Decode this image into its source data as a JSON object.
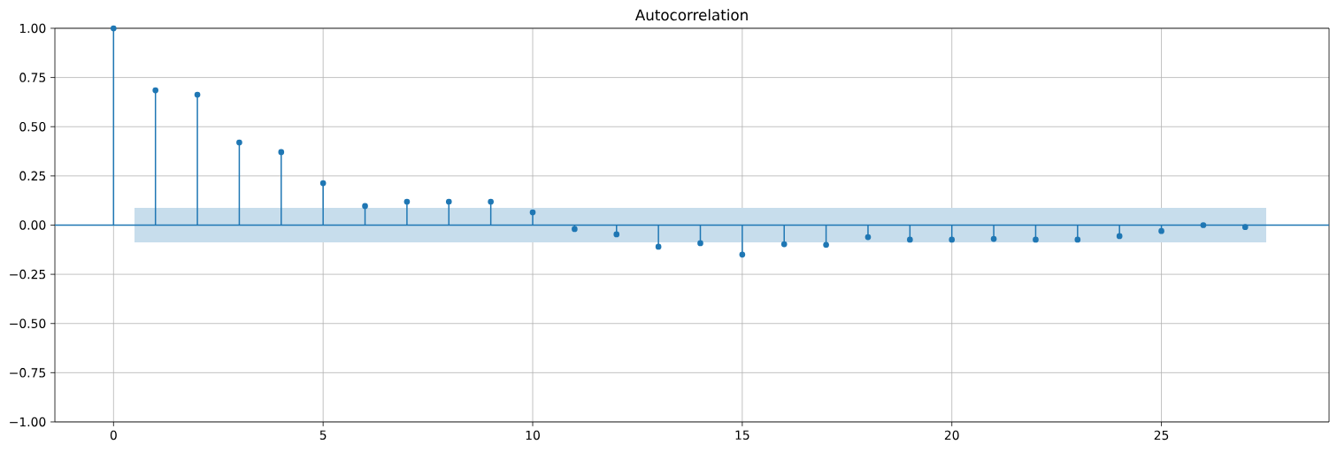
{
  "chart_data": {
    "type": "lollipop",
    "title": "Autocorrelation",
    "x": [
      0,
      1,
      2,
      3,
      4,
      5,
      6,
      7,
      8,
      9,
      10,
      11,
      12,
      13,
      14,
      15,
      16,
      17,
      18,
      19,
      20,
      21,
      22,
      23,
      24,
      25,
      26,
      27
    ],
    "series": [
      {
        "color": "#1f77b4",
        "values": [
          1.0,
          0.685,
          0.663,
          0.42,
          0.371,
          0.213,
          0.097,
          0.119,
          0.119,
          0.119,
          0.065,
          -0.02,
          -0.047,
          -0.11,
          -0.092,
          -0.15,
          -0.097,
          -0.1,
          -0.061,
          -0.074,
          -0.074,
          -0.07,
          -0.074,
          -0.074,
          -0.056,
          -0.03,
          0.0,
          -0.01
        ]
      }
    ],
    "bands": [
      {
        "axis": "y",
        "from": -0.088,
        "to": 0.088,
        "color": "#c7ddec"
      }
    ],
    "ref_lines": [
      {
        "axis": "y",
        "value": 0,
        "color": "#1f77b4"
      }
    ],
    "xlim": [
      -1.4,
      29.0
    ],
    "ylim": [
      -1.0,
      1.0
    ],
    "xticks": [
      0,
      5,
      10,
      15,
      20,
      25
    ],
    "yticks": [
      {
        "value": -1.0,
        "label": "−1.00"
      },
      {
        "value": -0.75,
        "label": "−0.75"
      },
      {
        "value": -0.5,
        "label": "−0.50"
      },
      {
        "value": -0.25,
        "label": "−0.25"
      },
      {
        "value": 0.0,
        "label": "0.00"
      },
      {
        "value": 0.25,
        "label": "0.25"
      },
      {
        "value": 0.5,
        "label": "0.50"
      },
      {
        "value": 0.75,
        "label": "0.75"
      },
      {
        "value": 1.0,
        "label": "1.00"
      }
    ],
    "grid": true,
    "marker": "circle",
    "line_style": "solid"
  }
}
